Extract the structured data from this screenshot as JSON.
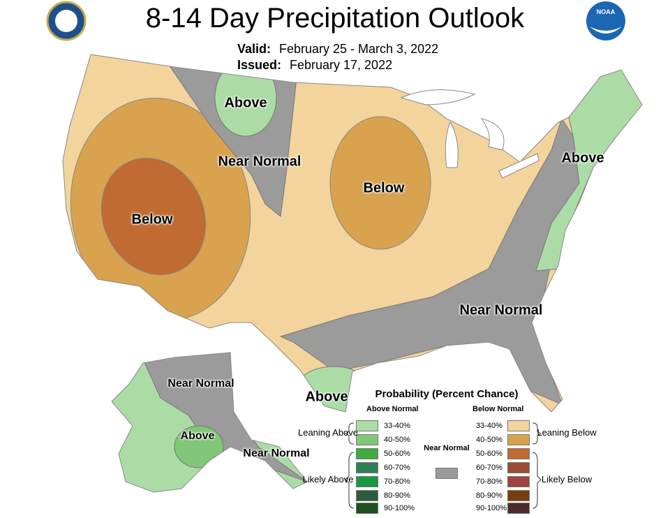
{
  "header": {
    "title": "8-14 Day Precipitation Outlook",
    "valid_label": "Valid:",
    "valid": "February 25 - March 3, 2022",
    "issued_label": "Issued:",
    "issued": "February 17, 2022",
    "logo_text": "NOAA"
  },
  "map_labels": [
    "Above",
    "Near Normal",
    "Below",
    "Below",
    "Above",
    "Near Normal",
    "Above",
    "Near Normal",
    "Above",
    "Near Normal"
  ],
  "legend": {
    "title": "Probability (Percent Chance)",
    "above_header": "Above Normal",
    "below_header": "Below Normal",
    "near_label": "Near Normal",
    "near_color": "#9b9b9b",
    "above": [
      {
        "range": "33-40%",
        "color": "#acdca6"
      },
      {
        "range": "40-50%",
        "color": "#80c777"
      },
      {
        "range": "50-60%",
        "color": "#3eab3e"
      },
      {
        "range": "60-70%",
        "color": "#2f7f57"
      },
      {
        "range": "70-80%",
        "color": "#199840"
      },
      {
        "range": "80-90%",
        "color": "#2c5c3b"
      },
      {
        "range": "90-100%",
        "color": "#204f1f"
      }
    ],
    "below": [
      {
        "range": "33-40%",
        "color": "#f3d49c"
      },
      {
        "range": "40-50%",
        "color": "#d8a24f"
      },
      {
        "range": "50-60%",
        "color": "#c06b31"
      },
      {
        "range": "60-70%",
        "color": "#9c4c33"
      },
      {
        "range": "70-80%",
        "color": "#a04342"
      },
      {
        "range": "80-90%",
        "color": "#7b3d10"
      },
      {
        "range": "90-100%",
        "color": "#4b2b2b"
      }
    ],
    "groups": [
      "Leaning Above",
      "Likely Above",
      "Leaning Below",
      "Likely Below"
    ]
  }
}
